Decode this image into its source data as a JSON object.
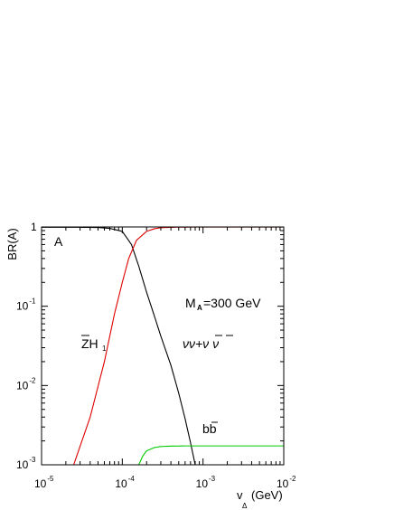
{
  "chart_data": {
    "type": "line",
    "panel_label": "A",
    "xlabel": "v",
    "xlabel_sub": "Δ",
    "xlabel_unit": "(GeV)",
    "ylabel": "BR(A)",
    "x_scale": "log",
    "y_scale": "log",
    "xlim": [
      1e-05,
      0.01
    ],
    "ylim": [
      0.001,
      1
    ],
    "grid": false,
    "x_ticks": [
      {
        "base": "10",
        "exp": "-5",
        "value": 1e-05
      },
      {
        "base": "10",
        "exp": "-4",
        "value": 0.0001
      },
      {
        "base": "10",
        "exp": "-3",
        "value": 0.001
      },
      {
        "base": "10",
        "exp": "-2",
        "value": 0.01
      }
    ],
    "y_ticks": [
      {
        "base": "10",
        "exp": "-3",
        "value": 0.001
      },
      {
        "base": "10",
        "exp": "-2",
        "value": 0.01
      },
      {
        "base": "10",
        "exp": "-1",
        "value": 0.1
      },
      {
        "base": "1",
        "exp": "",
        "value": 1
      }
    ],
    "annotations": {
      "mass": "M",
      "mass_sub": "A",
      "mass_value": "=300 GeV",
      "nunu": "νν+ν ν",
      "zh": "ZH",
      "zh_sub": "1",
      "bb": "bb"
    },
    "series": [
      {
        "label": "ZH1",
        "color": "#000000",
        "x": [
          1e-05,
          3e-05,
          5e-05,
          7e-05,
          0.0001,
          0.00013,
          0.00016,
          0.0002,
          0.00025,
          0.0003,
          0.0004,
          0.0005,
          0.0006,
          0.0007,
          0.0008
        ],
        "y": [
          0.99,
          0.99,
          0.985,
          0.96,
          0.88,
          0.6,
          0.32,
          0.15,
          0.075,
          0.042,
          0.018,
          0.008,
          0.0038,
          0.0019,
          0.001
        ]
      },
      {
        "label": "νν+ν̄ν̄",
        "color": "#dd0000",
        "x": [
          2.5e-05,
          4e-05,
          6e-05,
          8e-05,
          0.0001,
          0.00012,
          0.00015,
          0.0002,
          0.00025,
          0.0003,
          0.0005,
          0.001,
          0.01
        ],
        "y": [
          0.001,
          0.004,
          0.02,
          0.08,
          0.2,
          0.4,
          0.68,
          0.88,
          0.95,
          0.98,
          0.995,
          0.998,
          0.998
        ]
      },
      {
        "label": "bb̄",
        "color": "#00cc00",
        "x": [
          0.00016,
          0.00018,
          0.0002,
          0.00025,
          0.0003,
          0.0004,
          0.0006,
          0.001,
          0.01
        ],
        "y": [
          0.001,
          0.0013,
          0.0015,
          0.00165,
          0.0017,
          0.00172,
          0.00173,
          0.00173,
          0.00173
        ]
      }
    ]
  }
}
